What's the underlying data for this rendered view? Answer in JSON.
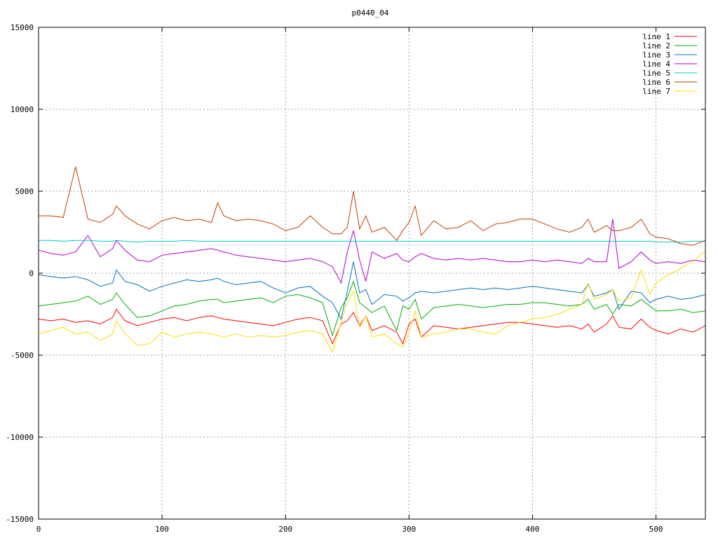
{
  "chart_data": {
    "type": "line",
    "title": "p0440_04",
    "xlabel": "",
    "ylabel": "",
    "xlim": [
      0,
      540
    ],
    "ylim": [
      -15000,
      15000
    ],
    "xticks": [
      0,
      100,
      200,
      300,
      400,
      500
    ],
    "yticks": [
      -15000,
      -10000,
      -5000,
      0,
      5000,
      10000,
      15000
    ],
    "grid": true,
    "legend_position": "top-right",
    "x": [
      0,
      10,
      20,
      30,
      40,
      50,
      60,
      63,
      70,
      80,
      90,
      100,
      110,
      120,
      130,
      140,
      145,
      150,
      160,
      170,
      180,
      190,
      200,
      210,
      220,
      230,
      238,
      245,
      250,
      255,
      260,
      265,
      270,
      280,
      290,
      295,
      300,
      305,
      310,
      320,
      330,
      340,
      350,
      360,
      370,
      380,
      390,
      400,
      410,
      420,
      430,
      440,
      445,
      450,
      460,
      465,
      470,
      480,
      488,
      495,
      500,
      510,
      520,
      530,
      540
    ],
    "series": [
      {
        "name": "line 1",
        "color": "#ff0000",
        "values": [
          -2800,
          -2900,
          -2800,
          -3000,
          -2900,
          -3100,
          -2700,
          -2200,
          -2900,
          -3200,
          -3000,
          -2800,
          -2700,
          -2900,
          -2700,
          -2600,
          -2700,
          -2800,
          -2900,
          -3000,
          -3100,
          -3200,
          -3000,
          -2800,
          -2700,
          -2900,
          -4300,
          -3100,
          -2900,
          -2400,
          -3200,
          -2600,
          -3500,
          -3200,
          -3600,
          -4300,
          -3100,
          -2800,
          -3900,
          -3200,
          -3300,
          -3400,
          -3300,
          -3200,
          -3100,
          -3000,
          -3000,
          -3100,
          -3200,
          -3300,
          -3200,
          -3400,
          -3100,
          -3600,
          -3100,
          -2600,
          -3300,
          -3400,
          -2800,
          -3300,
          -3500,
          -3700,
          -3400,
          -3600,
          -3200
        ]
      },
      {
        "name": "line 2",
        "color": "#00b000",
        "values": [
          -2000,
          -1900,
          -1800,
          -1700,
          -1400,
          -1900,
          -1600,
          -1200,
          -1900,
          -2700,
          -2600,
          -2300,
          -2000,
          -1900,
          -1700,
          -1600,
          -1600,
          -1800,
          -1700,
          -1600,
          -1500,
          -1800,
          -1400,
          -1300,
          -1500,
          -1800,
          -3800,
          -2100,
          -1500,
          -500,
          -1800,
          -2100,
          -2400,
          -2000,
          -3500,
          -2000,
          -2200,
          -1600,
          -2800,
          -2100,
          -2000,
          -1900,
          -2000,
          -2100,
          -2000,
          -1900,
          -1900,
          -1800,
          -1800,
          -1900,
          -2000,
          -1900,
          -1600,
          -2200,
          -1900,
          -2500,
          -1900,
          -2000,
          -1600,
          -2000,
          -2300,
          -2300,
          -2200,
          -2400,
          -2300
        ]
      },
      {
        "name": "line 3",
        "color": "#0070c0",
        "values": [
          -100,
          -200,
          -300,
          -200,
          -400,
          -800,
          -600,
          200,
          -500,
          -700,
          -1100,
          -800,
          -600,
          -400,
          -500,
          -400,
          -300,
          -500,
          -700,
          -600,
          -500,
          -900,
          -1200,
          -900,
          -800,
          -1400,
          -1800,
          -2800,
          -1100,
          700,
          -1200,
          -1000,
          -1900,
          -1300,
          -1400,
          -1700,
          -1500,
          -1200,
          -1100,
          -1200,
          -1100,
          -1000,
          -900,
          -1000,
          -900,
          -1000,
          -900,
          -800,
          -900,
          -1000,
          -1100,
          -1200,
          -700,
          -1400,
          -1200,
          -1000,
          -2200,
          -1100,
          -1200,
          -1800,
          -1600,
          -1400,
          -1600,
          -1500,
          -1300
        ]
      },
      {
        "name": "line 4",
        "color": "#b000d0",
        "values": [
          1400,
          1200,
          1100,
          1300,
          2300,
          1000,
          1500,
          2000,
          1400,
          800,
          700,
          1100,
          1200,
          1300,
          1400,
          1500,
          1400,
          1300,
          1100,
          1000,
          900,
          800,
          700,
          800,
          900,
          700,
          400,
          -600,
          1300,
          2600,
          800,
          -500,
          1300,
          900,
          1200,
          800,
          700,
          1000,
          1200,
          900,
          800,
          900,
          800,
          900,
          800,
          700,
          700,
          800,
          700,
          800,
          700,
          600,
          900,
          700,
          700,
          3300,
          300,
          700,
          1300,
          800,
          600,
          700,
          600,
          800,
          700
        ]
      },
      {
        "name": "line 5",
        "color": "#00c8c8",
        "values": [
          2000,
          2000,
          1950,
          2000,
          2000,
          1950,
          1950,
          2000,
          1950,
          1900,
          1950,
          1950,
          1950,
          2000,
          1950,
          1950,
          1950,
          1950,
          1950,
          1950,
          1950,
          1950,
          1950,
          1950,
          1950,
          1950,
          1950,
          1950,
          1950,
          1950,
          1950,
          1950,
          1950,
          1950,
          1950,
          1950,
          1950,
          1950,
          1950,
          1950,
          1950,
          1950,
          1950,
          1950,
          1950,
          1950,
          1950,
          1950,
          1950,
          1950,
          1950,
          1950,
          1950,
          1950,
          1950,
          1950,
          1950,
          1950,
          1950,
          1950,
          1900,
          1900,
          1900,
          1950,
          1950
        ]
      },
      {
        "name": "line 6",
        "color": "#c04000",
        "values": [
          3500,
          3500,
          3400,
          6500,
          3300,
          3100,
          3600,
          4100,
          3500,
          3000,
          2700,
          3200,
          3400,
          3200,
          3300,
          3100,
          4300,
          3500,
          3200,
          3300,
          3200,
          3000,
          2600,
          2800,
          3500,
          2800,
          2400,
          2400,
          2800,
          5000,
          2700,
          3500,
          2500,
          2800,
          2000,
          2600,
          3100,
          4100,
          2300,
          3200,
          2700,
          2800,
          3200,
          2600,
          3000,
          3100,
          3300,
          3300,
          3000,
          2700,
          2500,
          2800,
          3300,
          2500,
          2900,
          2600,
          2600,
          2800,
          3300,
          2400,
          2200,
          2100,
          1800,
          1700,
          2000
        ]
      },
      {
        "name": "line 7",
        "color": "#ffdc00",
        "values": [
          -3700,
          -3500,
          -3300,
          -3700,
          -3600,
          -4100,
          -3700,
          -2900,
          -3700,
          -4400,
          -4300,
          -3600,
          -3900,
          -3700,
          -3600,
          -3700,
          -3800,
          -3900,
          -3700,
          -3900,
          -3800,
          -3900,
          -3800,
          -3600,
          -3500,
          -3700,
          -4800,
          -3000,
          -1800,
          -1100,
          -3300,
          -2600,
          -3900,
          -3700,
          -4300,
          -4500,
          -3600,
          -2300,
          -3900,
          -3700,
          -3600,
          -3400,
          -3400,
          -3600,
          -3700,
          -3200,
          -3000,
          -2800,
          -2700,
          -2500,
          -2200,
          -1900,
          -600,
          -1600,
          -1300,
          -1000,
          -1700,
          -1500,
          200,
          -1300,
          -600,
          -100,
          300,
          700,
          1400
        ]
      }
    ]
  }
}
